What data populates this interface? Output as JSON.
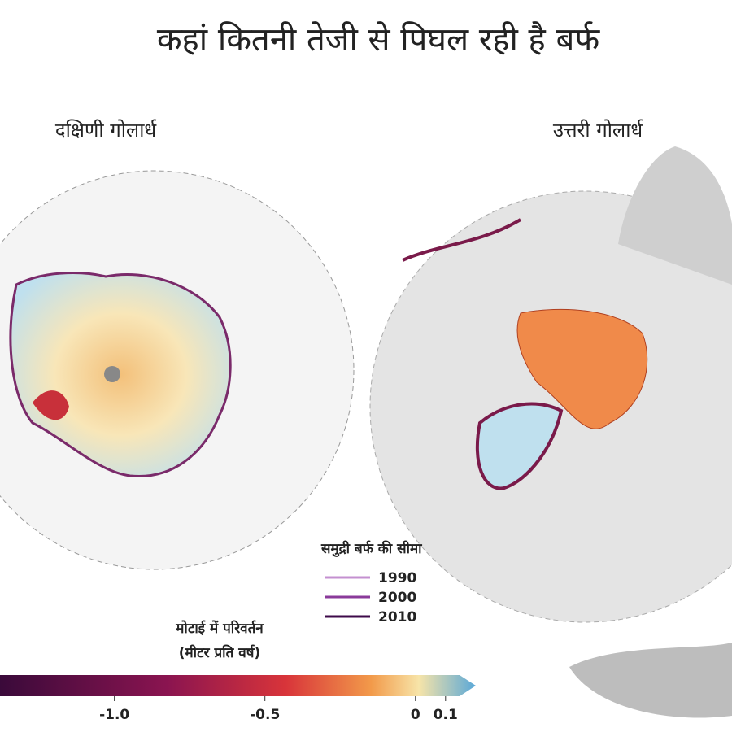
{
  "header": {
    "title": "कहां कितनी तेजी से पिघल रही है बर्फ"
  },
  "maps": [
    {
      "label": "दक्षिणी गोलार्ध"
    },
    {
      "label": "उत्तरी गोलार्ध"
    }
  ],
  "sea_ice_legend": {
    "title": "समुद्री बर्फ की सीमा",
    "items": [
      {
        "label": "1990",
        "color": "#c490d0"
      },
      {
        "label": "2000",
        "color": "#8a3a9a"
      },
      {
        "label": "2010",
        "color": "#3d0a4a"
      }
    ]
  },
  "colorbar": {
    "title": "मोटाई में परिवर्तन",
    "unit": "(मीटर प्रति वर्ष)",
    "range": [
      -1.38,
      0.16
    ],
    "ticks": [
      {
        "value": -1,
        "label": "-1.0"
      },
      -0.5,
      0,
      0.1
    ]
  }
}
